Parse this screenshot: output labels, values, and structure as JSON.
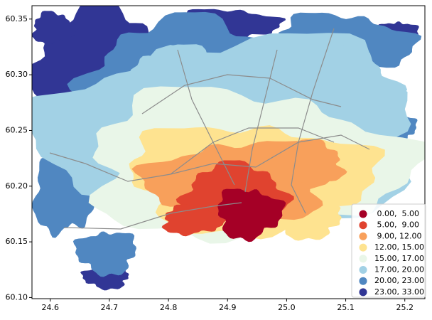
{
  "map": {
    "xlim": [
      24.569,
      25.234
    ],
    "ylim": [
      60.099,
      60.362
    ],
    "xticks": [
      {
        "value": 24.6,
        "label": "24.6"
      },
      {
        "value": 24.7,
        "label": "24.7"
      },
      {
        "value": 24.8,
        "label": "24.8"
      },
      {
        "value": 24.9,
        "label": "24.9"
      },
      {
        "value": 25.0,
        "label": "25.0"
      },
      {
        "value": 25.1,
        "label": "25.1"
      },
      {
        "value": 25.2,
        "label": "25.2"
      }
    ],
    "yticks": [
      {
        "value": 60.1,
        "label": "60.10"
      },
      {
        "value": 60.15,
        "label": "60.15"
      },
      {
        "value": 60.2,
        "label": "60.20"
      },
      {
        "value": 60.25,
        "label": "60.25"
      },
      {
        "value": 60.3,
        "label": "60.30"
      },
      {
        "value": 60.35,
        "label": "60.35"
      }
    ],
    "legend": {
      "position": "lower right",
      "entries": [
        {
          "label": " 0.00,  5.00",
          "color": "#a50026"
        },
        {
          "label": " 5.00,  9.00",
          "color": "#e0432f"
        },
        {
          "label": " 9.00, 12.00",
          "color": "#f8a05b"
        },
        {
          "label": "12.00, 15.00",
          "color": "#fee390"
        },
        {
          "label": "15.00, 17.00",
          "color": "#e9f6e8"
        },
        {
          "label": "17.00, 20.00",
          "color": "#a2d1e5"
        },
        {
          "label": "20.00, 23.00",
          "color": "#5087c1"
        },
        {
          "label": "23.00, 33.00",
          "color": "#313695"
        }
      ]
    }
  }
}
